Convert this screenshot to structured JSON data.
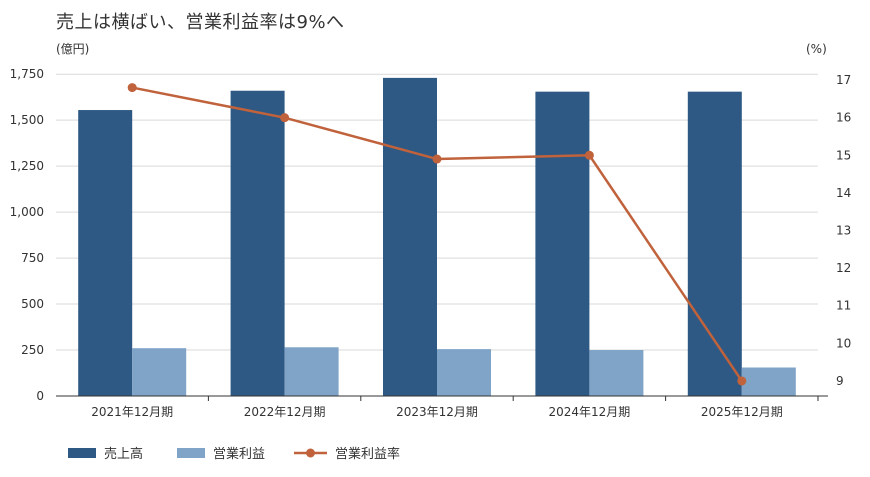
{
  "chart_data": {
    "type": "bar",
    "title": "売上は横ばい、営業利益率は9%へ",
    "ylabel_left": "(億円)",
    "ylabel_right": "(%)",
    "categories": [
      "2021年12月期",
      "2022年12月期",
      "2023年12月期",
      "2024年12月期",
      "2025年12月期"
    ],
    "left_ticks": [
      "0",
      "250",
      "500",
      "750",
      "1,000",
      "1,250",
      "1,500",
      "1,750"
    ],
    "right_ticks": [
      "9",
      "10",
      "11",
      "12",
      "13",
      "14",
      "15",
      "16",
      "17"
    ],
    "ylim_left": [
      0,
      1800
    ],
    "ylim_right": [
      8.6,
      17.4
    ],
    "series": [
      {
        "name": "売上高",
        "kind": "bar",
        "axis": "left",
        "color": "#2e5984",
        "values": [
          1555,
          1660,
          1730,
          1655,
          1655
        ]
      },
      {
        "name": "営業利益",
        "kind": "bar",
        "axis": "left",
        "color": "#7fa4c7",
        "values": [
          260,
          265,
          255,
          250,
          155
        ]
      },
      {
        "name": "営業利益率",
        "kind": "line",
        "axis": "right",
        "color": "#c0623b",
        "values": [
          16.8,
          16.0,
          14.9,
          15.0,
          9.0
        ]
      }
    ],
    "grid": true,
    "legend_position": "bottom-left"
  }
}
